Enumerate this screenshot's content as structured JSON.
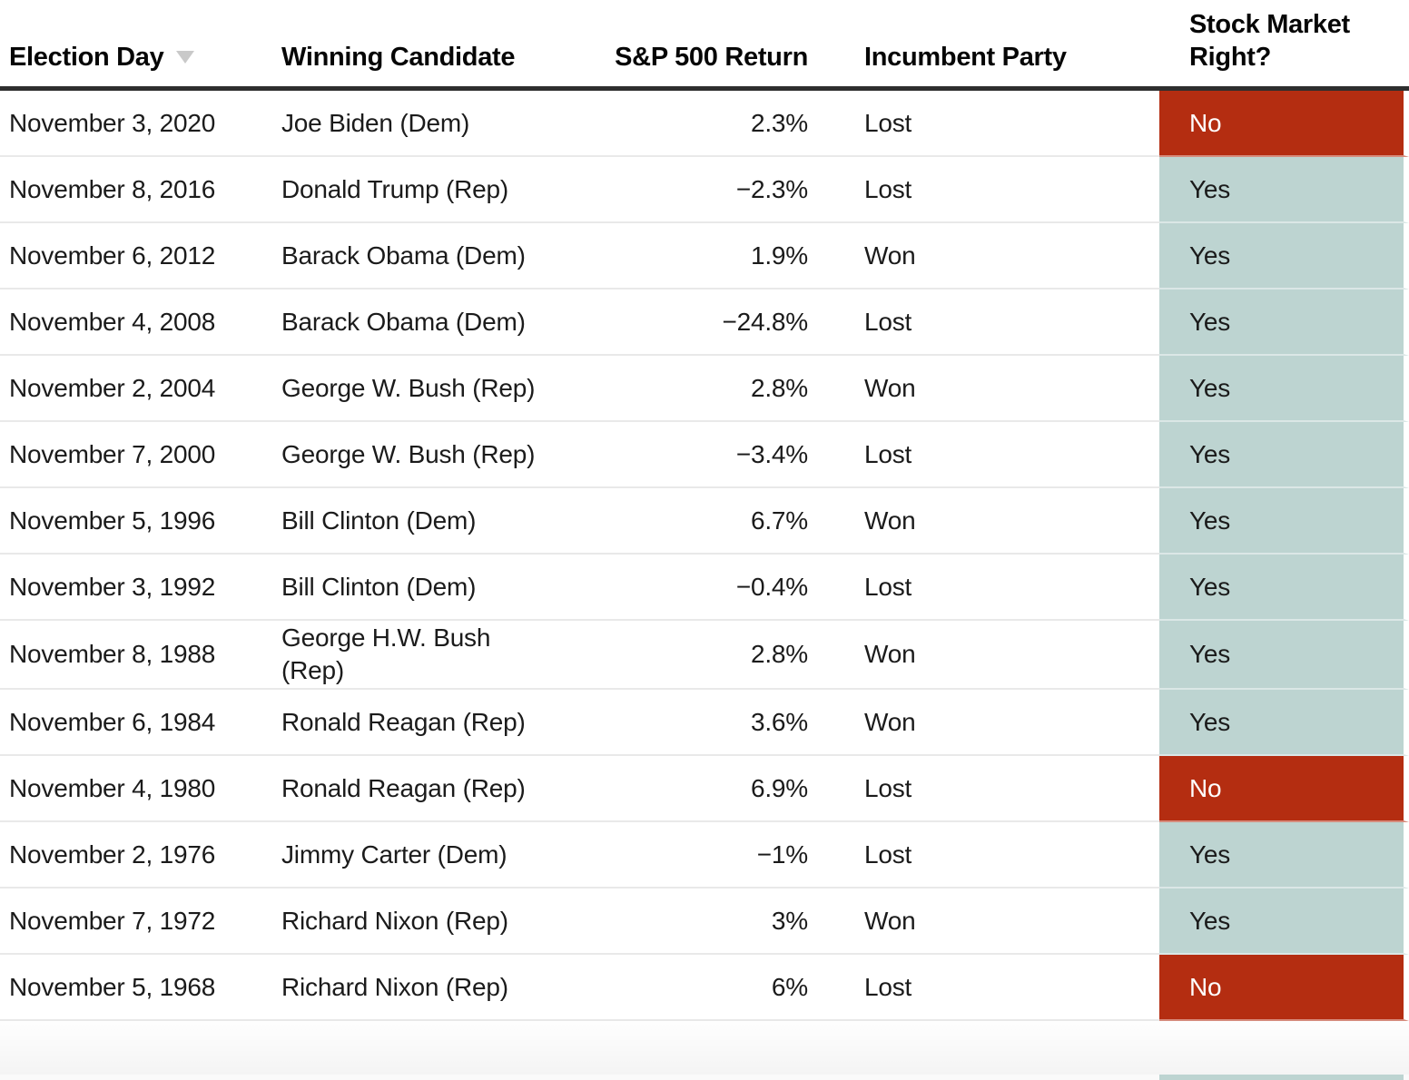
{
  "chart_data": {
    "type": "table",
    "columns": [
      "Election Day",
      "Winning Candidate",
      "S&P 500 Return",
      "Incumbent Party",
      "Stock Market Right?"
    ],
    "rows": [
      [
        "November 3, 2020",
        "Joe Biden (Dem)",
        "2.3%",
        "Lost",
        "No"
      ],
      [
        "November 8, 2016",
        "Donald Trump (Rep)",
        "−2.3%",
        "Lost",
        "Yes"
      ],
      [
        "November 6, 2012",
        "Barack Obama (Dem)",
        "1.9%",
        "Won",
        "Yes"
      ],
      [
        "November 4, 2008",
        "Barack Obama (Dem)",
        "−24.8%",
        "Lost",
        "Yes"
      ],
      [
        "November 2, 2004",
        "George W. Bush (Rep)",
        "2.8%",
        "Won",
        "Yes"
      ],
      [
        "November 7, 2000",
        "George W. Bush (Rep)",
        "−3.4%",
        "Lost",
        "Yes"
      ],
      [
        "November 5, 1996",
        "Bill Clinton (Dem)",
        "6.7%",
        "Won",
        "Yes"
      ],
      [
        "November 3, 1992",
        "Bill Clinton (Dem)",
        "−0.4%",
        "Lost",
        "Yes"
      ],
      [
        "November 8, 1988",
        "George H.W. Bush\n(Rep)",
        "2.8%",
        "Won",
        "Yes"
      ],
      [
        "November 6, 1984",
        "Ronald Reagan (Rep)",
        "3.6%",
        "Won",
        "Yes"
      ],
      [
        "November 4, 1980",
        "Ronald Reagan (Rep)",
        "6.9%",
        "Lost",
        "No"
      ],
      [
        "November 2, 1976",
        "Jimmy Carter (Dem)",
        "−1%",
        "Lost",
        "Yes"
      ],
      [
        "November 7, 1972",
        "Richard Nixon (Rep)",
        "3%",
        "Won",
        "Yes"
      ],
      [
        "November 5, 1968",
        "Richard Nixon (Rep)",
        "6%",
        "Lost",
        "No"
      ]
    ],
    "sp500_return_numeric": [
      2.3,
      -2.3,
      1.9,
      -24.8,
      2.8,
      -3.4,
      6.7,
      -0.4,
      2.8,
      3.6,
      6.9,
      -1,
      3,
      6
    ],
    "sort": {
      "column": "Election Day",
      "direction": "desc"
    }
  },
  "ui": {
    "colors": {
      "yes_bg": "#bdd4d1",
      "no_bg": "#b42d11",
      "no_text": "#ffffff",
      "body_text": "#1b1b1b",
      "header_text": "#060606",
      "header_rule": "#2e2e2e",
      "row_divider": "#e9e9e9",
      "sort_arrow": "#c9c9c9",
      "partial_next_row_color": "#bdd4d1"
    },
    "labels": {
      "yes": "Yes",
      "no": "No"
    }
  }
}
